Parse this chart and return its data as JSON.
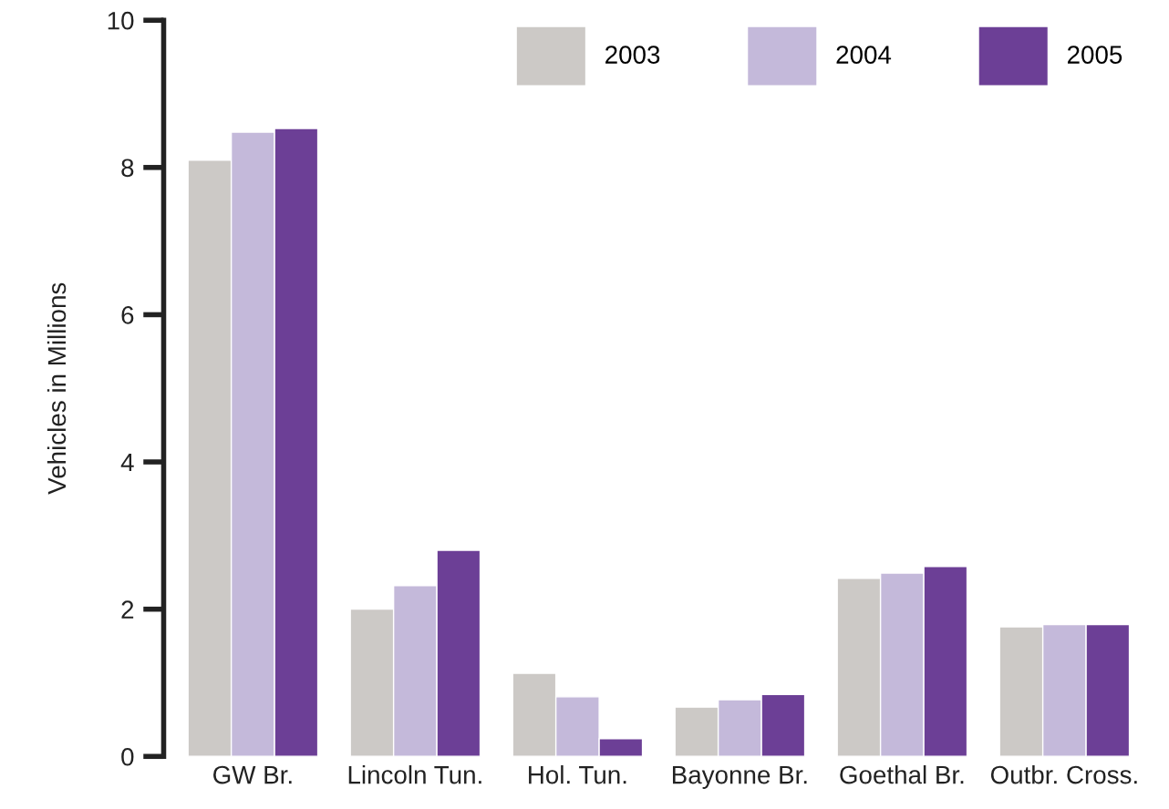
{
  "chart_data": {
    "type": "bar",
    "ylabel": "Vehicles in Millions",
    "categories": [
      "GW Br.",
      "Lincoln Tun.",
      "Hol. Tun.",
      "Bayonne Br.",
      "Goethal Br.",
      "Outbr. Cross."
    ],
    "series": [
      {
        "name": "2003",
        "color": "#ccc9c6",
        "values": [
          8.1,
          2.0,
          1.13,
          0.67,
          2.42,
          1.76
        ]
      },
      {
        "name": "2004",
        "color": "#c4b9da",
        "values": [
          8.48,
          2.32,
          0.81,
          0.77,
          2.49,
          1.79
        ]
      },
      {
        "name": "2005",
        "color": "#6c3f96",
        "values": [
          8.53,
          2.8,
          0.24,
          0.84,
          2.58,
          1.79
        ]
      }
    ],
    "ylim": [
      0,
      10
    ],
    "yticks": [
      0,
      2,
      4,
      6,
      8,
      10
    ],
    "grid": false,
    "legend": "top right"
  }
}
